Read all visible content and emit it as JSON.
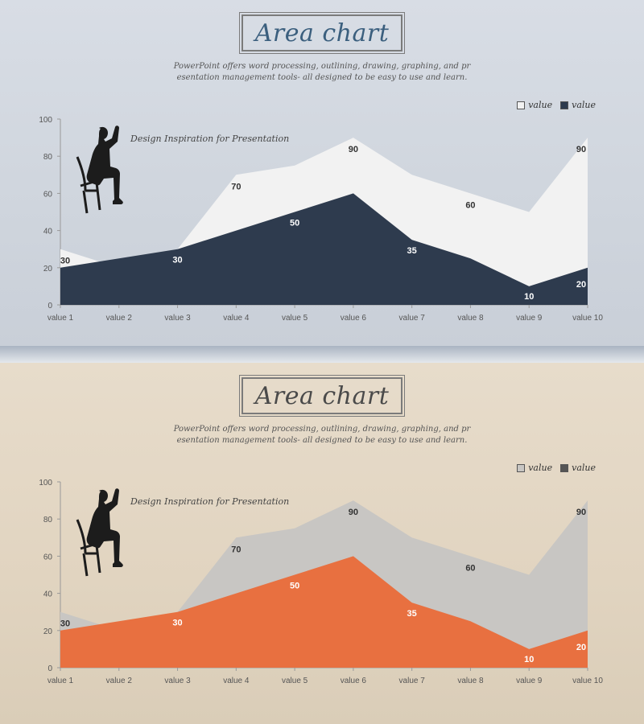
{
  "slides": [
    {
      "title": "Area chart",
      "subtitle_line1": "PowerPoint offers word processing, outlining, drawing, graphing, and pr",
      "subtitle_line2": "esentation management tools- all designed to be easy to use and learn.",
      "caption": "Design Inspiration  for Presentation",
      "colors": {
        "back": "#f2f2f2",
        "front": "#2e3b4e",
        "front_label": "#ffffff",
        "back_label": "#333333"
      },
      "legend": [
        "value",
        "value"
      ]
    },
    {
      "title": "Area chart",
      "subtitle_line1": "PowerPoint offers word processing, outlining, drawing, graphing, and pr",
      "subtitle_line2": "esentation management tools- all designed to be easy to use and learn.",
      "caption": "Design Inspiration  for Presentation",
      "colors": {
        "back": "#c8c6c3",
        "front": "#e87040",
        "front_label": "#ffffff",
        "back_label": "#333333"
      },
      "legend": [
        "value",
        "value"
      ]
    }
  ],
  "chart_data": [
    {
      "type": "area",
      "categories": [
        "value 1",
        "value 2",
        "value 3",
        "value 4",
        "value 5",
        "value 6",
        "value 7",
        "value 8",
        "value 9",
        "value 10"
      ],
      "series": [
        {
          "name": "value",
          "values": [
            30,
            20,
            30,
            70,
            75,
            90,
            70,
            60,
            50,
            90
          ],
          "labels_shown": [
            30,
            null,
            null,
            70,
            null,
            90,
            null,
            60,
            null,
            90
          ]
        },
        {
          "name": "value",
          "values": [
            20,
            25,
            30,
            40,
            50,
            60,
            35,
            25,
            10,
            20
          ],
          "labels_shown": [
            null,
            null,
            30,
            null,
            50,
            null,
            35,
            null,
            10,
            20
          ]
        }
      ],
      "ylim": [
        0,
        100
      ],
      "yticks": [
        0,
        20,
        40,
        60,
        80,
        100
      ],
      "legend_position": "top-right"
    },
    {
      "type": "area",
      "categories": [
        "value 1",
        "value 2",
        "value 3",
        "value 4",
        "value 5",
        "value 6",
        "value 7",
        "value 8",
        "value 9",
        "value 10"
      ],
      "series": [
        {
          "name": "value",
          "values": [
            30,
            20,
            30,
            70,
            75,
            90,
            70,
            60,
            50,
            90
          ],
          "labels_shown": [
            30,
            null,
            null,
            70,
            null,
            90,
            null,
            60,
            null,
            90
          ]
        },
        {
          "name": "value",
          "values": [
            20,
            25,
            30,
            40,
            50,
            60,
            35,
            25,
            10,
            20
          ],
          "labels_shown": [
            null,
            null,
            30,
            null,
            50,
            null,
            35,
            null,
            10,
            20
          ]
        }
      ],
      "ylim": [
        0,
        100
      ],
      "yticks": [
        0,
        20,
        40,
        60,
        80,
        100
      ],
      "legend_position": "top-right"
    }
  ]
}
